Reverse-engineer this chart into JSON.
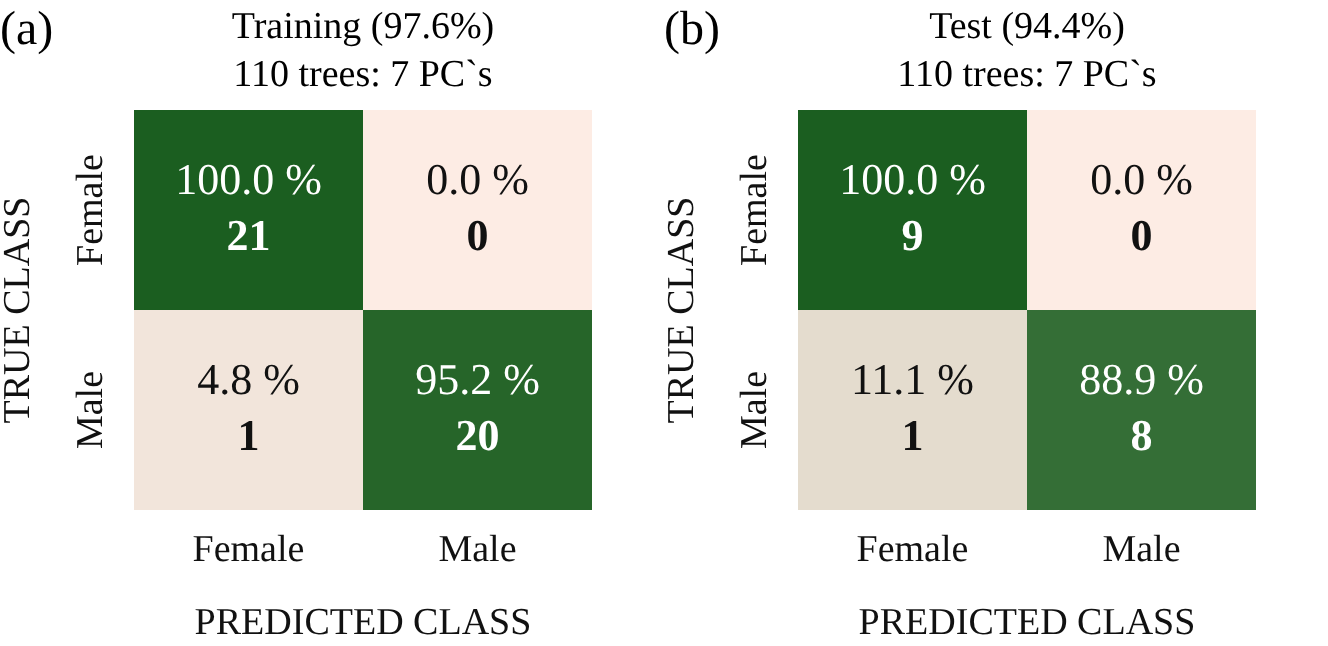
{
  "chart_data": [
    {
      "type": "heatmap",
      "title": "Training (97.6%)",
      "subtitle": "110 trees: 7 PC`s",
      "annotations": [
        "(a)",
        "21",
        "0",
        "1",
        "20"
      ],
      "xlabel": "PREDICTED CLASS",
      "ylabel": "TRUE CLASS",
      "categories": [
        "Female",
        "Male"
      ],
      "y_categories": [
        "Female",
        "Male"
      ],
      "cells": [
        [
          100.0,
          0.0
        ],
        [
          4.8,
          95.2
        ]
      ],
      "cell_labels": [
        [
          "100.0 %",
          "0.0 %"
        ],
        [
          "4.8 %",
          "95.2 %"
        ]
      ]
    },
    {
      "type": "heatmap",
      "title": "Test (94.4%)",
      "subtitle": "110 trees: 7 PC`s",
      "annotations": [
        "(b)",
        "9",
        "0",
        "1",
        "8"
      ],
      "xlabel": "PREDICTED CLASS",
      "ylabel": "TRUE CLASS",
      "categories": [
        "Female",
        "Male"
      ],
      "y_categories": [
        "Female",
        "Male"
      ],
      "cells": [
        [
          100.0,
          0.0
        ],
        [
          11.1,
          88.9
        ]
      ],
      "cell_labels": [
        [
          "100.0 %",
          "0.0 %"
        ],
        [
          "11.1 %",
          "88.9 %"
        ]
      ]
    }
  ]
}
